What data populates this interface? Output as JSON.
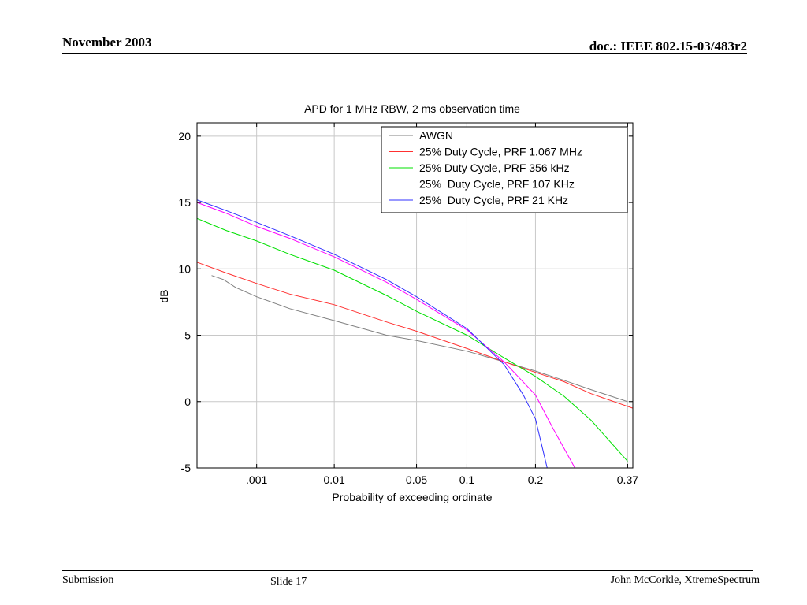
{
  "header": {
    "date": "November 2003",
    "doc_id": "doc.: IEEE 802.15-03/483r2"
  },
  "footer": {
    "submission": "Submission",
    "slide": "Slide 17",
    "author": "John McCorkle, XtremeSpectrum"
  },
  "chart_data": {
    "type": "line",
    "title": "APD for 1 MHz RBW, 2 ms observation time",
    "xlabel": "Probability of exceeding ordinate",
    "ylabel": "dB",
    "xlim": [
      8e-05,
      0.38
    ],
    "ylim": [
      -5,
      21
    ],
    "x_scale": "rayleigh",
    "grid": true,
    "legend_position": "top-right",
    "x_ticks": [
      {
        "value": 0.001,
        "label": ".001"
      },
      {
        "value": 0.01,
        "label": "0.01"
      },
      {
        "value": 0.05,
        "label": "0.05"
      },
      {
        "value": 0.1,
        "label": "0.1"
      },
      {
        "value": 0.2,
        "label": "0.2"
      },
      {
        "value": 0.37,
        "label": "0.37"
      }
    ],
    "y_ticks": [
      -5,
      0,
      5,
      10,
      15,
      20
    ],
    "series": [
      {
        "name": "AWGN",
        "color": "#808080",
        "points": [
          [
            0.00016,
            9.5
          ],
          [
            0.00027,
            9.2
          ],
          [
            0.00045,
            8.6
          ],
          [
            0.001,
            7.9
          ],
          [
            0.003,
            7.0
          ],
          [
            0.01,
            6.1
          ],
          [
            0.03,
            5.0
          ],
          [
            0.05,
            4.6
          ],
          [
            0.1,
            3.8
          ],
          [
            0.15,
            3.0
          ],
          [
            0.2,
            2.3
          ],
          [
            0.25,
            1.6
          ],
          [
            0.3,
            0.9
          ],
          [
            0.37,
            0.0
          ]
        ]
      },
      {
        "name": "25% Duty Cycle, PRF 1.067 MHz",
        "color": "#ff3030",
        "points": [
          [
            8e-05,
            10.5
          ],
          [
            0.0003,
            9.7
          ],
          [
            0.001,
            8.9
          ],
          [
            0.003,
            8.1
          ],
          [
            0.01,
            7.3
          ],
          [
            0.03,
            6.0
          ],
          [
            0.05,
            5.3
          ],
          [
            0.1,
            4.0
          ],
          [
            0.15,
            3.0
          ],
          [
            0.2,
            2.2
          ],
          [
            0.25,
            1.5
          ],
          [
            0.3,
            0.6
          ],
          [
            0.38,
            -0.5
          ]
        ]
      },
      {
        "name": "25% Duty Cycle, PRF 356 kHz",
        "color": "#00e000",
        "points": [
          [
            8e-05,
            13.8
          ],
          [
            0.0003,
            12.9
          ],
          [
            0.001,
            12.1
          ],
          [
            0.003,
            11.1
          ],
          [
            0.01,
            9.9
          ],
          [
            0.03,
            8.0
          ],
          [
            0.05,
            6.8
          ],
          [
            0.1,
            5.0
          ],
          [
            0.15,
            3.3
          ],
          [
            0.2,
            1.9
          ],
          [
            0.25,
            0.4
          ],
          [
            0.3,
            -1.4
          ],
          [
            0.37,
            -4.5
          ]
        ]
      },
      {
        "name": "25%  Duty Cycle, PRF 107 KHz",
        "color": "#ff00ff",
        "points": [
          [
            8e-05,
            15.0
          ],
          [
            0.0003,
            14.2
          ],
          [
            0.001,
            13.2
          ],
          [
            0.003,
            12.3
          ],
          [
            0.01,
            10.9
          ],
          [
            0.03,
            9.0
          ],
          [
            0.05,
            7.7
          ],
          [
            0.1,
            5.4
          ],
          [
            0.15,
            3.0
          ],
          [
            0.2,
            0.5
          ],
          [
            0.23,
            -2.0
          ],
          [
            0.27,
            -5.0
          ]
        ]
      },
      {
        "name": "25%  Duty Cycle, PRF 21 KHz",
        "color": "#3030ff",
        "points": [
          [
            8e-05,
            15.2
          ],
          [
            0.0003,
            14.4
          ],
          [
            0.001,
            13.5
          ],
          [
            0.003,
            12.5
          ],
          [
            0.01,
            11.1
          ],
          [
            0.03,
            9.2
          ],
          [
            0.05,
            7.9
          ],
          [
            0.1,
            5.5
          ],
          [
            0.15,
            2.8
          ],
          [
            0.18,
            0.5
          ],
          [
            0.2,
            -1.3
          ],
          [
            0.22,
            -5.0
          ]
        ]
      }
    ]
  }
}
